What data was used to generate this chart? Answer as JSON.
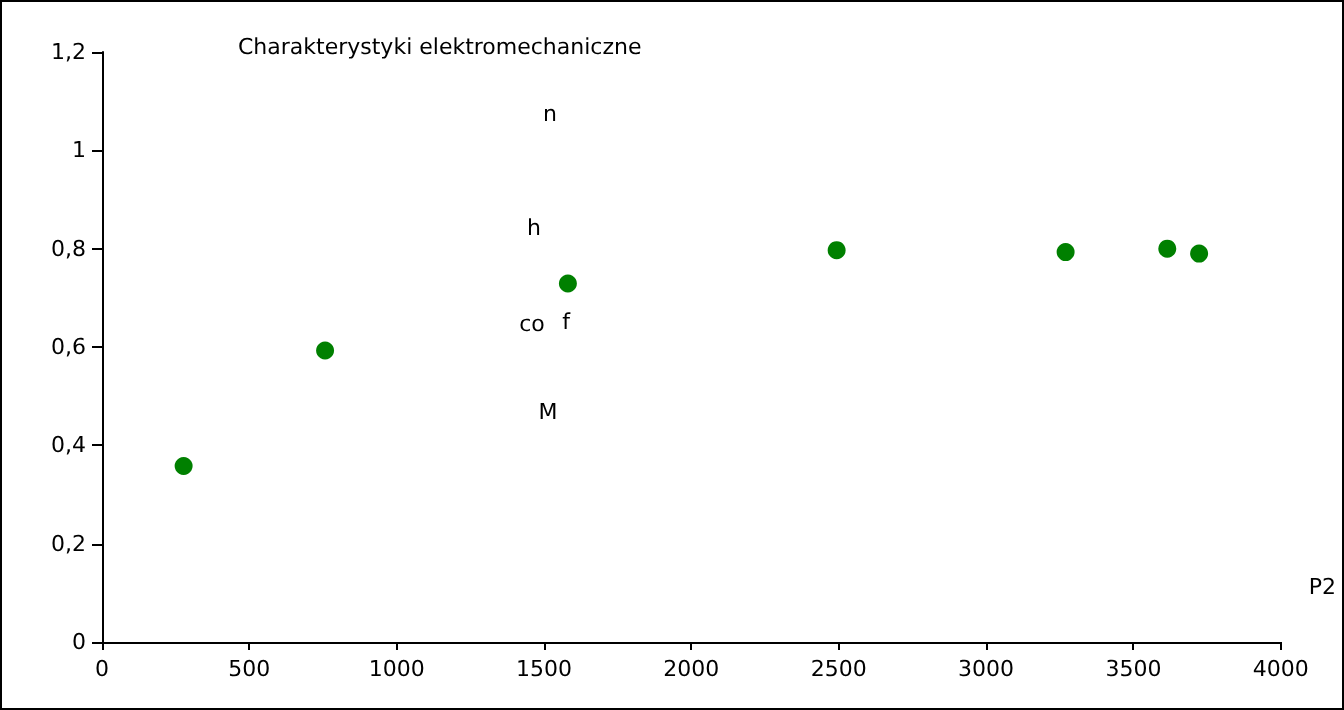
{
  "chart_data": {
    "type": "scatter",
    "title": "Charakterystyki elektromechaniczne",
    "xlabel": "P2",
    "x": [
      277,
      757,
      1581,
      2493,
      3270,
      3615,
      3723
    ],
    "series": [
      {
        "color": "#008000",
        "values": [
          0.358,
          0.593,
          0.729,
          0.797,
          0.793,
          0.8,
          0.79
        ]
      }
    ],
    "annotations": [
      "n",
      "h",
      "co",
      "f",
      "M"
    ],
    "marker": "circle",
    "xlim": [
      0,
      4000
    ],
    "xticks": [
      0,
      500,
      1000,
      1500,
      2000,
      2500,
      3000,
      3500,
      4000
    ],
    "ylim": [
      0,
      1.2
    ],
    "yticks": [
      0,
      {
        "value": 0.2,
        "label": "0,2"
      },
      {
        "value": 0.4,
        "label": "0,4"
      },
      {
        "value": 0.6,
        "label": "0,6"
      },
      {
        "value": 0.8,
        "label": "0,8"
      },
      1,
      {
        "value": 1.2,
        "label": "1,2"
      }
    ],
    "grid": false
  }
}
